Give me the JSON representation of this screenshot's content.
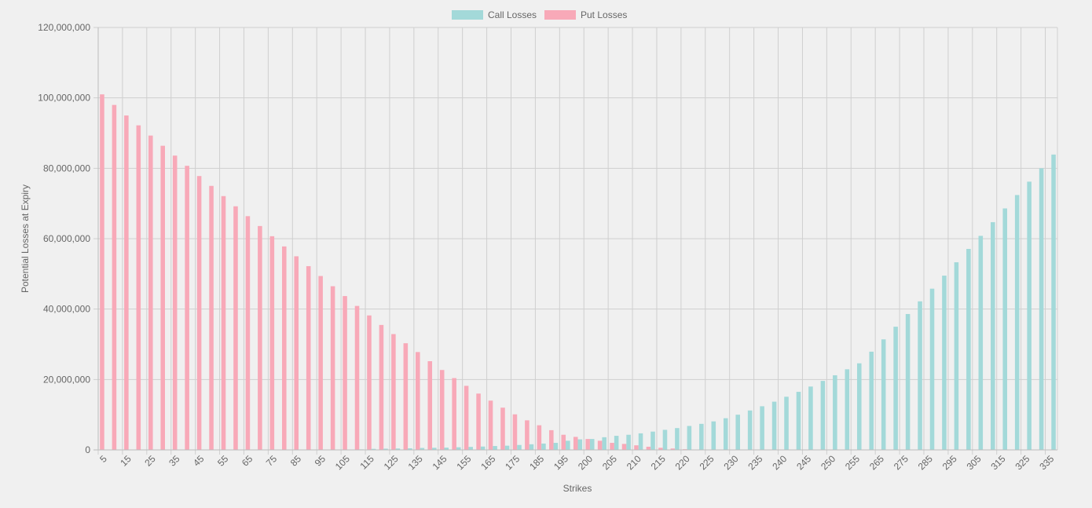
{
  "colors": {
    "call": "#a3d9d9",
    "put": "#f8a9b8",
    "grid": "#cfcfcf",
    "axis": "#bdbdbd",
    "text": "#666666",
    "background": "#f0f0f0"
  },
  "chart_data": {
    "type": "bar",
    "title": "",
    "xlabel": "Strikes",
    "ylabel": "Potential Losses at Expiry",
    "ylim": [
      0,
      120000000
    ],
    "yticks": [
      0,
      20000000,
      40000000,
      60000000,
      80000000,
      100000000,
      120000000
    ],
    "ytick_labels": [
      "0",
      "20,000,000",
      "40,000,000",
      "60,000,000",
      "80,000,000",
      "100,000,000",
      "120,000,000"
    ],
    "grid": true,
    "legend_position": "top-center",
    "categories": [
      "5",
      "10",
      "15",
      "20",
      "25",
      "30",
      "35",
      "40",
      "45",
      "50",
      "55",
      "60",
      "65",
      "70",
      "75",
      "80",
      "85",
      "90",
      "95",
      "100",
      "105",
      "110",
      "115",
      "120",
      "125",
      "130",
      "135",
      "140",
      "145",
      "150",
      "155",
      "160",
      "165",
      "170",
      "175",
      "180",
      "185",
      "190",
      "195",
      "197.5",
      "200",
      "202.5",
      "205",
      "207.5",
      "210",
      "212.5",
      "215",
      "217.5",
      "220",
      "222.5",
      "225",
      "227.5",
      "230",
      "232.5",
      "235",
      "237.5",
      "240",
      "242.5",
      "245",
      "247.5",
      "250",
      "252.5",
      "255",
      "260",
      "265",
      "270",
      "275",
      "280",
      "285",
      "290",
      "295",
      "300",
      "305",
      "310",
      "315",
      "320",
      "325",
      "330",
      "335"
    ],
    "tick_labels": [
      "5",
      "15",
      "25",
      "35",
      "45",
      "55",
      "65",
      "75",
      "85",
      "95",
      "105",
      "115",
      "125",
      "135",
      "145",
      "155",
      "165",
      "175",
      "185",
      "195",
      "200",
      "205",
      "210",
      "215",
      "220",
      "225",
      "230",
      "235",
      "240",
      "245",
      "250",
      "255",
      "265",
      "275",
      "285",
      "295",
      "305",
      "315",
      "325",
      "335"
    ],
    "series": [
      {
        "name": "Call Losses",
        "values": [
          0,
          0,
          0,
          0,
          0,
          0,
          0,
          0,
          0,
          0,
          0,
          0,
          0,
          0,
          0,
          0,
          0,
          0,
          0,
          0,
          0,
          150000,
          300000,
          350000,
          400000,
          450000,
          550000,
          600000,
          650000,
          750000,
          850000,
          950000,
          1100000,
          1200000,
          1400000,
          1600000,
          1800000,
          2000000,
          2600000,
          3000000,
          3100000,
          3600000,
          4000000,
          4300000,
          4700000,
          5200000,
          5700000,
          6200000,
          6800000,
          7400000,
          8100000,
          9000000,
          10000000,
          11200000,
          12400000,
          13700000,
          15100000,
          16500000,
          18000000,
          19600000,
          21200000,
          22900000,
          24600000,
          27900000,
          31400000,
          35000000,
          38600000,
          42200000,
          45800000,
          49500000,
          53300000,
          57100000,
          60800000,
          64700000,
          68600000,
          72400000,
          76200000,
          80000000,
          83900000
        ]
      },
      {
        "name": "Put Losses",
        "values": [
          101000000,
          98000000,
          95000000,
          92200000,
          89300000,
          86400000,
          83600000,
          80700000,
          77800000,
          75000000,
          72100000,
          69200000,
          66400000,
          63600000,
          60700000,
          57800000,
          55000000,
          52200000,
          49400000,
          46500000,
          43700000,
          40900000,
          38200000,
          35500000,
          32900000,
          30300000,
          27800000,
          25200000,
          22700000,
          20400000,
          18200000,
          16000000,
          14000000,
          12000000,
          10100000,
          8400000,
          7000000,
          5600000,
          4300000,
          3700000,
          3100000,
          2600000,
          2000000,
          1700000,
          1300000,
          900000,
          600000,
          400000,
          200000,
          100000,
          0,
          0,
          0,
          0,
          0,
          0,
          0,
          0,
          0,
          0,
          0,
          0,
          0,
          0,
          0,
          0,
          0,
          0,
          0,
          0,
          0,
          0,
          0,
          0,
          0,
          0,
          0,
          0,
          0
        ]
      }
    ]
  }
}
